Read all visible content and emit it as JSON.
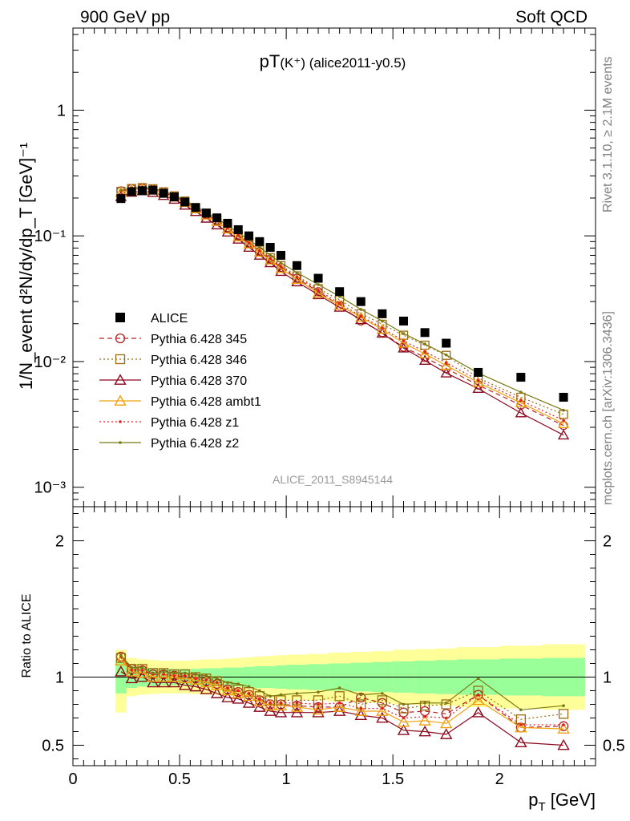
{
  "header": {
    "left": "900 GeV pp",
    "right": "Soft QCD"
  },
  "side_text": {
    "rivet": "Rivet 3.1.10, ≥ 2.1M events",
    "mcplots": "mcplots.cern.ch [arXiv:1306.3436]"
  },
  "chart_data": [
    {
      "type": "scatter",
      "panel": "main",
      "title": "pT(K⁺) (alice2011-y0.5)",
      "ylabel": "1/N_event d²N/dy/dp_T [GeV]⁻¹",
      "xlabel": "",
      "yscale": "log",
      "xlim": [
        0,
        2.45
      ],
      "ylim": [
        0.0007,
        4.5
      ],
      "yticks": [
        {
          "value": 1,
          "label": "1"
        },
        {
          "value": 0.1,
          "label": "10⁻¹"
        },
        {
          "value": 0.01,
          "label": "10⁻²"
        },
        {
          "value": 0.001,
          "label": "10⁻³"
        }
      ],
      "watermark": "ALICE_2011_S8945144",
      "legend_position": "left",
      "x": [
        0.225,
        0.275,
        0.325,
        0.375,
        0.425,
        0.475,
        0.525,
        0.575,
        0.625,
        0.675,
        0.725,
        0.775,
        0.825,
        0.875,
        0.925,
        0.975,
        1.05,
        1.15,
        1.25,
        1.35,
        1.45,
        1.55,
        1.65,
        1.75,
        1.9,
        2.1,
        2.3
      ],
      "series": [
        {
          "name": "ALICE",
          "color": "#000000",
          "marker": "square",
          "line": "none",
          "values": [
            0.198,
            0.225,
            0.229,
            0.231,
            0.218,
            0.204,
            0.186,
            0.168,
            0.152,
            0.139,
            0.126,
            0.112,
            0.1,
            0.09,
            0.081,
            0.07,
            0.058,
            0.046,
            0.036,
            0.03,
            0.024,
            0.021,
            0.017,
            0.014,
            0.0082,
            0.0075,
            0.0052
          ]
        },
        {
          "name": "Pythia 6.428 345",
          "color": "#b22222",
          "marker": "circle-open",
          "line": "dashed",
          "values": [
            0.228,
            0.238,
            0.24,
            0.235,
            0.222,
            0.206,
            0.186,
            0.166,
            0.148,
            0.132,
            0.115,
            0.1,
            0.087,
            0.075,
            0.065,
            0.056,
            0.046,
            0.036,
            0.028,
            0.021,
            0.017,
            0.013,
            0.0108,
            0.0088,
            0.0065,
            0.0045,
            0.0031
          ]
        },
        {
          "name": "Pythia 6.428 346",
          "color": "#9c6b0e",
          "marker": "square-open",
          "line": "dotted",
          "values": [
            0.226,
            0.238,
            0.242,
            0.237,
            0.224,
            0.208,
            0.189,
            0.168,
            0.15,
            0.134,
            0.117,
            0.102,
            0.089,
            0.077,
            0.067,
            0.058,
            0.048,
            0.038,
            0.031,
            0.024,
            0.0198,
            0.0162,
            0.0135,
            0.0112,
            0.0074,
            0.0052,
            0.0038
          ]
        },
        {
          "name": "Pythia 6.428 370",
          "color": "#8b0a1e",
          "marker": "triangle-open",
          "line": "solid",
          "values": [
            0.205,
            0.222,
            0.228,
            0.221,
            0.209,
            0.195,
            0.175,
            0.156,
            0.138,
            0.122,
            0.107,
            0.094,
            0.081,
            0.07,
            0.061,
            0.052,
            0.043,
            0.034,
            0.027,
            0.0215,
            0.0168,
            0.0128,
            0.0102,
            0.0081,
            0.0061,
            0.0039,
            0.0026
          ]
        },
        {
          "name": "Pythia 6.428 ambt1",
          "color": "#f0a010",
          "marker": "triangle-open",
          "line": "solid",
          "values": [
            0.222,
            0.233,
            0.236,
            0.231,
            0.219,
            0.203,
            0.184,
            0.164,
            0.146,
            0.13,
            0.113,
            0.098,
            0.086,
            0.074,
            0.064,
            0.055,
            0.045,
            0.035,
            0.028,
            0.0225,
            0.018,
            0.014,
            0.0115,
            0.0093,
            0.0068,
            0.0047,
            0.0032
          ]
        },
        {
          "name": "Pythia 6.428 z1",
          "color": "#e02020",
          "marker": "dot",
          "line": "dotted",
          "values": [
            0.227,
            0.237,
            0.24,
            0.235,
            0.222,
            0.206,
            0.187,
            0.167,
            0.149,
            0.133,
            0.116,
            0.101,
            0.088,
            0.076,
            0.066,
            0.057,
            0.047,
            0.037,
            0.029,
            0.023,
            0.0185,
            0.0146,
            0.012,
            0.0098,
            0.0071,
            0.0049,
            0.0034
          ]
        },
        {
          "name": "Pythia 6.428 z2",
          "color": "#7a7a10",
          "marker": "dot",
          "line": "solid",
          "values": [
            0.23,
            0.24,
            0.244,
            0.239,
            0.227,
            0.211,
            0.192,
            0.172,
            0.154,
            0.138,
            0.121,
            0.106,
            0.093,
            0.081,
            0.07,
            0.061,
            0.051,
            0.041,
            0.033,
            0.026,
            0.021,
            0.0167,
            0.0138,
            0.0113,
            0.0081,
            0.0057,
            0.0041
          ]
        }
      ]
    },
    {
      "type": "line",
      "panel": "ratio",
      "ylabel": "Ratio to ALICE",
      "xlabel": "p_T [GeV]",
      "yscale": "linear",
      "xlim": [
        0,
        2.45
      ],
      "ylim": [
        0.35,
        2.25
      ],
      "xticks": [
        {
          "value": 0,
          "label": "0"
        },
        {
          "value": 0.5,
          "label": "0.5"
        },
        {
          "value": 1,
          "label": "1"
        },
        {
          "value": 1.5,
          "label": "1.5"
        },
        {
          "value": 2,
          "label": "2"
        }
      ],
      "yticks": [
        {
          "value": 0.5,
          "label": "0.5"
        },
        {
          "value": 1,
          "label": "1"
        },
        {
          "value": 2,
          "label": "2"
        }
      ],
      "reference_line": 1,
      "band_edges": [
        0.2,
        0.25,
        0.3,
        0.35,
        0.4,
        0.45,
        0.5,
        0.55,
        0.6,
        0.65,
        0.7,
        0.75,
        0.8,
        0.85,
        0.9,
        0.95,
        1.0,
        1.1,
        1.2,
        1.3,
        1.4,
        1.5,
        1.6,
        1.7,
        1.8,
        2.0,
        2.2,
        2.4
      ],
      "stat_band": {
        "color": "#99ff99",
        "lo": [
          0.88,
          0.92,
          0.93,
          0.935,
          0.94,
          0.94,
          0.94,
          0.94,
          0.935,
          0.935,
          0.93,
          0.93,
          0.925,
          0.92,
          0.92,
          0.915,
          0.91,
          0.905,
          0.9,
          0.895,
          0.89,
          0.885,
          0.88,
          0.875,
          0.87,
          0.865,
          0.86
        ],
        "hi": [
          1.12,
          1.08,
          1.07,
          1.065,
          1.06,
          1.06,
          1.06,
          1.06,
          1.065,
          1.065,
          1.07,
          1.07,
          1.075,
          1.08,
          1.08,
          1.085,
          1.09,
          1.095,
          1.1,
          1.105,
          1.11,
          1.115,
          1.12,
          1.125,
          1.13,
          1.135,
          1.14
        ]
      },
      "syst_band": {
        "color": "#ffff99",
        "lo": [
          0.74,
          0.86,
          0.87,
          0.875,
          0.88,
          0.88,
          0.88,
          0.875,
          0.87,
          0.87,
          0.865,
          0.86,
          0.855,
          0.85,
          0.845,
          0.84,
          0.835,
          0.83,
          0.82,
          0.815,
          0.81,
          0.8,
          0.795,
          0.79,
          0.78,
          0.77,
          0.76
        ],
        "hi": [
          1.2,
          1.14,
          1.13,
          1.125,
          1.12,
          1.12,
          1.12,
          1.125,
          1.13,
          1.13,
          1.135,
          1.14,
          1.145,
          1.15,
          1.155,
          1.16,
          1.165,
          1.17,
          1.18,
          1.185,
          1.19,
          1.2,
          1.205,
          1.21,
          1.22,
          1.23,
          1.24
        ]
      },
      "x": [
        0.225,
        0.275,
        0.325,
        0.375,
        0.425,
        0.475,
        0.525,
        0.575,
        0.625,
        0.675,
        0.725,
        0.775,
        0.825,
        0.875,
        0.925,
        0.975,
        1.05,
        1.15,
        1.25,
        1.35,
        1.45,
        1.55,
        1.65,
        1.75,
        1.9,
        2.1,
        2.3
      ],
      "series": [
        {
          "name": "Pythia 6.428 345",
          "color": "#b22222",
          "marker": "circle-open",
          "line": "dashed",
          "values": [
            1.15,
            1.06,
            1.05,
            1.02,
            1.02,
            1.01,
            1.0,
            0.99,
            0.97,
            0.95,
            0.91,
            0.89,
            0.87,
            0.83,
            0.8,
            0.8,
            0.79,
            0.78,
            0.78,
            0.85,
            0.81,
            0.74,
            0.75,
            0.73,
            0.87,
            0.63,
            0.64
          ]
        },
        {
          "name": "Pythia 6.428 346",
          "color": "#9c6b0e",
          "marker": "square-open",
          "line": "dotted",
          "values": [
            1.14,
            1.06,
            1.06,
            1.03,
            1.03,
            1.02,
            1.02,
            1.0,
            0.99,
            0.97,
            0.93,
            0.91,
            0.89,
            0.86,
            0.83,
            0.83,
            0.83,
            0.83,
            0.86,
            0.8,
            0.83,
            0.77,
            0.79,
            0.8,
            0.9,
            0.69,
            0.73
          ]
        },
        {
          "name": "Pythia 6.428 370",
          "color": "#8b0a1e",
          "marker": "triangle-open",
          "line": "solid",
          "values": [
            1.04,
            0.99,
            1.0,
            0.96,
            0.96,
            0.96,
            0.94,
            0.93,
            0.91,
            0.88,
            0.85,
            0.84,
            0.81,
            0.78,
            0.75,
            0.74,
            0.74,
            0.74,
            0.75,
            0.72,
            0.7,
            0.61,
            0.6,
            0.58,
            0.74,
            0.52,
            0.5
          ]
        },
        {
          "name": "Pythia 6.428 ambt1",
          "color": "#f0a010",
          "marker": "triangle-open",
          "line": "solid",
          "values": [
            1.12,
            1.04,
            1.03,
            1.0,
            1.0,
            1.0,
            0.99,
            0.98,
            0.96,
            0.94,
            0.9,
            0.88,
            0.86,
            0.82,
            0.79,
            0.79,
            0.78,
            0.76,
            0.78,
            0.75,
            0.75,
            0.67,
            0.68,
            0.66,
            0.83,
            0.63,
            0.62
          ]
        },
        {
          "name": "Pythia 6.428 z1",
          "color": "#e02020",
          "marker": "dot",
          "line": "dotted",
          "values": [
            1.15,
            1.05,
            1.05,
            1.02,
            1.02,
            1.01,
            1.01,
            0.99,
            0.98,
            0.96,
            0.92,
            0.9,
            0.88,
            0.84,
            0.81,
            0.81,
            0.81,
            0.8,
            0.81,
            0.77,
            0.77,
            0.7,
            0.71,
            0.7,
            0.87,
            0.65,
            0.65
          ]
        },
        {
          "name": "Pythia 6.428 z2",
          "color": "#7a7a10",
          "marker": "dot",
          "line": "solid",
          "values": [
            1.16,
            1.07,
            1.07,
            1.03,
            1.04,
            1.03,
            1.03,
            1.02,
            1.01,
            0.99,
            0.96,
            0.95,
            0.93,
            0.9,
            0.86,
            0.87,
            0.88,
            0.89,
            0.92,
            0.87,
            0.88,
            0.8,
            0.81,
            0.81,
            0.99,
            0.76,
            0.79
          ]
        }
      ]
    }
  ]
}
